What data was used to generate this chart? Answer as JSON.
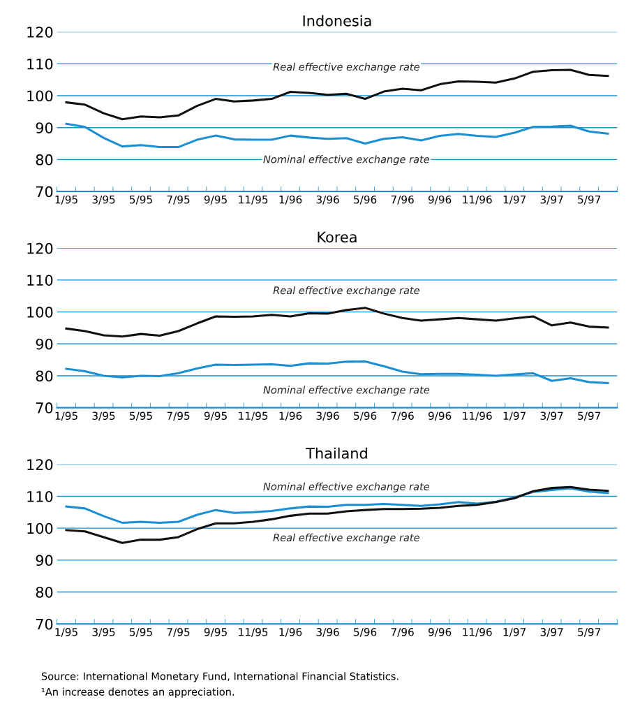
{
  "chart_data": [
    {
      "type": "line",
      "title": "Indonesia",
      "categories": [
        "1/95",
        null,
        "3/95",
        null,
        "5/95",
        null,
        "7/95",
        null,
        "9/95",
        null,
        "11/95",
        null,
        "1/96",
        null,
        "3/96",
        null,
        "5/96",
        null,
        "7/96",
        null,
        "9/96",
        null,
        "11/96",
        null,
        "1/97",
        null,
        "3/97",
        null,
        "5/97",
        null
      ],
      "series": [
        {
          "name": "Real effective exchange rate",
          "color": "#111111",
          "values": [
            97.9,
            97.2,
            94.5,
            92.6,
            93.5,
            93.2,
            93.8,
            96.8,
            99,
            98.2,
            98.5,
            99,
            101.2,
            100.9,
            100.3,
            100.6,
            99,
            101.3,
            102.2,
            101.7,
            103.6,
            104.5,
            104.4,
            104.1,
            105.4,
            107.5,
            108,
            108.1,
            106.5,
            106.2
          ]
        },
        {
          "name": "Nominal effective exchange rate",
          "color": "#1a8fd1",
          "values": [
            91.2,
            90.2,
            86.8,
            84.1,
            84.5,
            83.9,
            83.9,
            86.2,
            87.5,
            86.3,
            86.2,
            86.2,
            87.5,
            86.9,
            86.5,
            86.7,
            85,
            86.5,
            87,
            86,
            87.4,
            88,
            87.4,
            87.1,
            88.4,
            90.2,
            90.3,
            90.6,
            88.8,
            88.1
          ]
        }
      ],
      "ylim": [
        70,
        120
      ],
      "yticks": [
        70,
        80,
        90,
        100,
        110,
        120
      ],
      "grid": "y",
      "legend": false
    },
    {
      "type": "line",
      "title": "Korea",
      "categories": [
        "1/95",
        null,
        "3/95",
        null,
        "5/95",
        null,
        "7/95",
        null,
        "9/95",
        null,
        "11/95",
        null,
        "1/96",
        null,
        "3/96",
        null,
        "5/96",
        null,
        "7/96",
        null,
        "9/96",
        null,
        "11/96",
        null,
        "1/97",
        null,
        "3/97",
        null,
        "5/97",
        null
      ],
      "series": [
        {
          "name": "Real effective exchange rate",
          "color": "#111111",
          "values": [
            94.8,
            94,
            92.7,
            92.3,
            93.1,
            92.6,
            94,
            96.4,
            98.6,
            98.5,
            98.6,
            99.1,
            98.6,
            99.6,
            99.5,
            100.6,
            101.3,
            99.5,
            98.1,
            97.3,
            97.7,
            98.1,
            97.7,
            97.3,
            98,
            98.6,
            95.8,
            96.7,
            95.4,
            95.1
          ]
        },
        {
          "name": "Nominal effective exchange rate",
          "color": "#1a8fd1",
          "values": [
            82.2,
            81.4,
            80,
            79.5,
            80,
            79.9,
            80.8,
            82.3,
            83.5,
            83.4,
            83.5,
            83.6,
            83.1,
            83.9,
            83.8,
            84.4,
            84.5,
            83,
            81.3,
            80.5,
            80.6,
            80.6,
            80.3,
            80,
            80.4,
            80.8,
            78.4,
            79.2,
            78,
            77.7
          ]
        }
      ],
      "ylim": [
        70,
        120
      ],
      "yticks": [
        70,
        80,
        90,
        100,
        110,
        120
      ],
      "grid": "y",
      "legend": false
    },
    {
      "type": "line",
      "title": "Thailand",
      "categories": [
        "1/95",
        null,
        "3/95",
        null,
        "5/95",
        null,
        "7/95",
        null,
        "9/95",
        null,
        "11/95",
        null,
        "1/96",
        null,
        "3/96",
        null,
        "5/96",
        null,
        "7/96",
        null,
        "9/96",
        null,
        "11/96",
        null,
        "1/97",
        null,
        "3/97",
        null,
        "5/97",
        null
      ],
      "series": [
        {
          "name": "Nominal effective exchange rate",
          "color": "#1a8fd1",
          "values": [
            106.8,
            106.2,
            103.8,
            101.7,
            102,
            101.7,
            102,
            104.2,
            105.7,
            104.8,
            105,
            105.4,
            106.2,
            106.8,
            106.7,
            107.3,
            107.3,
            107.6,
            107.3,
            107,
            107.5,
            108.2,
            107.7,
            108.3,
            109.6,
            111.4,
            112,
            112.5,
            111.5,
            111
          ]
        },
        {
          "name": "Real effective exchange rate",
          "color": "#111111",
          "values": [
            99.4,
            99,
            97.2,
            95.4,
            96.4,
            96.4,
            97.2,
            99.7,
            101.5,
            101.5,
            102,
            102.8,
            103.9,
            104.6,
            104.6,
            105.3,
            105.7,
            106,
            106,
            106.1,
            106.4,
            107,
            107.3,
            108.2,
            109.4,
            111.6,
            112.6,
            112.9,
            112.1,
            111.7
          ]
        }
      ],
      "ylim": [
        70,
        120
      ],
      "yticks": [
        70,
        80,
        90,
        100,
        110,
        120
      ],
      "grid": "y",
      "legend": false,
      "annotations": [
        "Source: International Monetary Fund, International Financial Statistics.",
        "¹An increase denotes an appreciation."
      ]
    }
  ]
}
